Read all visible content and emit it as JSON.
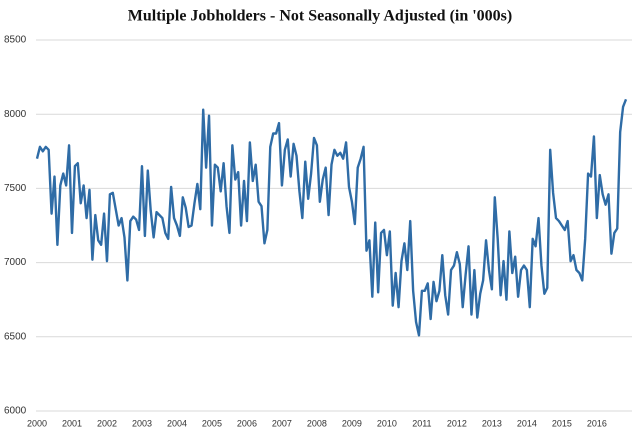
{
  "chart_data": {
    "type": "line",
    "title": "Multiple Jobholders - Not Seasonally Adjusted (in '000s)",
    "categories": [
      "2000",
      null,
      null,
      null,
      null,
      null,
      null,
      null,
      null,
      null,
      null,
      null,
      "2001",
      null,
      null,
      null,
      null,
      null,
      null,
      null,
      null,
      null,
      null,
      null,
      "2002",
      null,
      null,
      null,
      null,
      null,
      null,
      null,
      null,
      null,
      null,
      null,
      "2003",
      null,
      null,
      null,
      null,
      null,
      null,
      null,
      null,
      null,
      null,
      null,
      "2004",
      null,
      null,
      null,
      null,
      null,
      null,
      null,
      null,
      null,
      null,
      null,
      "2005",
      null,
      null,
      null,
      null,
      null,
      null,
      null,
      null,
      null,
      null,
      null,
      "2006",
      null,
      null,
      null,
      null,
      null,
      null,
      null,
      null,
      null,
      null,
      null,
      "2007",
      null,
      null,
      null,
      null,
      null,
      null,
      null,
      null,
      null,
      null,
      null,
      "2008",
      null,
      null,
      null,
      null,
      null,
      null,
      null,
      null,
      null,
      null,
      null,
      "2009",
      null,
      null,
      null,
      null,
      null,
      null,
      null,
      null,
      null,
      null,
      null,
      "2010",
      null,
      null,
      null,
      null,
      null,
      null,
      null,
      null,
      null,
      null,
      null,
      "2011",
      null,
      null,
      null,
      null,
      null,
      null,
      null,
      null,
      null,
      null,
      null,
      "2012",
      null,
      null,
      null,
      null,
      null,
      null,
      null,
      null,
      null,
      null,
      null,
      "2013",
      null,
      null,
      null,
      null,
      null,
      null,
      null,
      null,
      null,
      null,
      null,
      "2014",
      null,
      null,
      null,
      null,
      null,
      null,
      null,
      null,
      null,
      null,
      null,
      "2015",
      null,
      null,
      null,
      null,
      null,
      null,
      null,
      null,
      null,
      null,
      null,
      "2016",
      null,
      null,
      null,
      null,
      null,
      null,
      null,
      null,
      null,
      null
    ],
    "values": [
      7700,
      7780,
      7750,
      7780,
      7760,
      7330,
      7580,
      7120,
      7520,
      7600,
      7520,
      7790,
      7200,
      7650,
      7670,
      7400,
      7520,
      7300,
      7490,
      7020,
      7320,
      7150,
      7120,
      7330,
      7010,
      7460,
      7470,
      7360,
      7250,
      7300,
      7170,
      6880,
      7280,
      7310,
      7290,
      7220,
      7650,
      7180,
      7620,
      7350,
      7170,
      7340,
      7320,
      7300,
      7200,
      7160,
      7510,
      7300,
      7250,
      7180,
      7440,
      7370,
      7240,
      7250,
      7400,
      7530,
      7360,
      8030,
      7640,
      7990,
      7250,
      7660,
      7640,
      7480,
      7670,
      7380,
      7200,
      7790,
      7560,
      7610,
      7250,
      7550,
      7280,
      7810,
      7550,
      7660,
      7410,
      7380,
      7130,
      7220,
      7780,
      7870,
      7870,
      7940,
      7520,
      7760,
      7830,
      7580,
      7800,
      7720,
      7480,
      7300,
      7680,
      7430,
      7600,
      7840,
      7790,
      7410,
      7560,
      7640,
      7320,
      7660,
      7760,
      7720,
      7740,
      7700,
      7810,
      7510,
      7410,
      7260,
      7640,
      7700,
      7780,
      7080,
      7150,
      6770,
      7270,
      6800,
      7200,
      7220,
      7050,
      7210,
      6710,
      6930,
      6700,
      7010,
      7130,
      6950,
      7280,
      6810,
      6600,
      6510,
      6810,
      6810,
      6860,
      6620,
      6870,
      6740,
      6810,
      7050,
      6780,
      6650,
      6950,
      6980,
      7070,
      6990,
      6700,
      6920,
      7110,
      6650,
      6950,
      6630,
      6790,
      6880,
      7150,
      6950,
      6820,
      7440,
      7160,
      6780,
      7010,
      6750,
      7210,
      6930,
      7040,
      6770,
      6950,
      6980,
      6950,
      6700,
      7160,
      7110,
      7300,
      6980,
      6790,
      6830,
      7760,
      7470,
      7300,
      7280,
      7250,
      7220,
      7280,
      7010,
      7050,
      6950,
      6930,
      6880,
      7160,
      7600,
      7580,
      7850,
      7300,
      7590,
      7460,
      7390,
      7460,
      7060,
      7200,
      7230,
      7880,
      8050,
      8100
    ],
    "color": "#2f6ca6",
    "ylim": [
      6000,
      8500
    ],
    "yticks": [
      6000,
      6500,
      7000,
      7500,
      8000,
      8500
    ],
    "grid": true
  }
}
